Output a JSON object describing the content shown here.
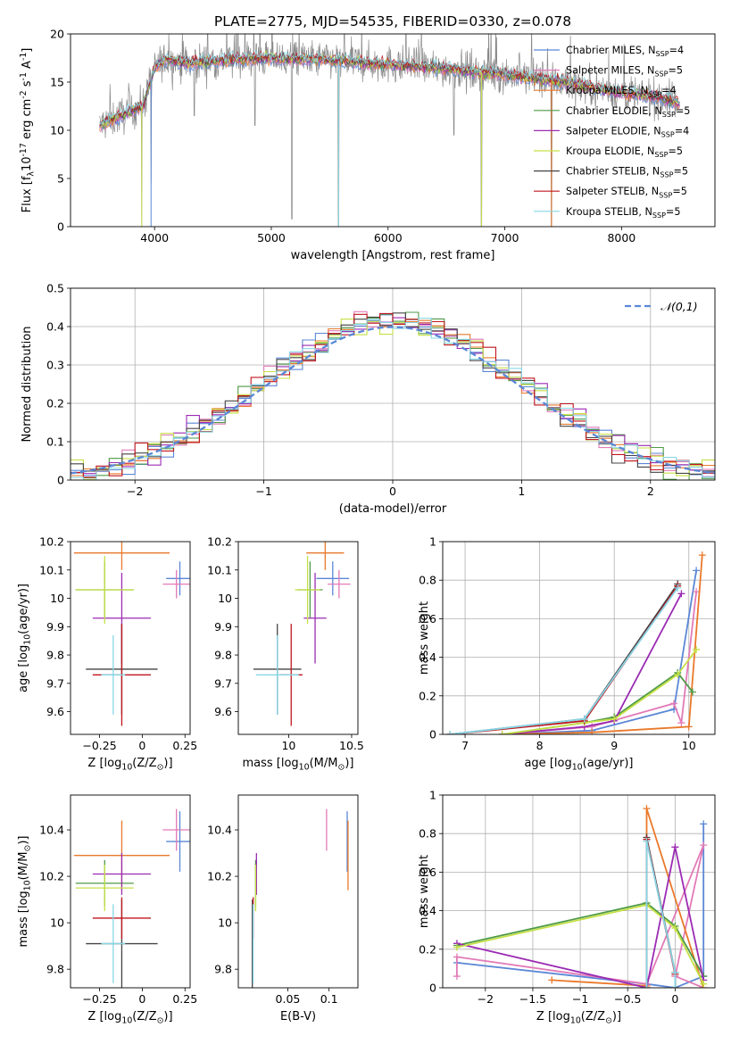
{
  "title": "PLATE=2775, MJD=54535, FIBERID=0330, z=0.078",
  "colors": {
    "chabrier_miles": "#5b87d6",
    "salpeter_miles": "#e27ab7",
    "kroupa_miles": "#e9792b",
    "chabrier_elodie": "#4f9a47",
    "salpeter_elodie": "#9b2bb4",
    "kroupa_elodie": "#c5e045",
    "chabrier_stelib": "#444444",
    "salpeter_stelib": "#c0161f",
    "kroupa_stelib": "#87d7e6",
    "data": "#888888",
    "gauss": "#5b87d6"
  },
  "legend_labels": [
    "Chabrier MILES, N$_{SSP}$=4",
    "Salpeter MILES, N$_{SSP}$=5",
    "Kroupa MILES, N$_{SSP}$=4",
    "Chabrier ELODIE, N$_{SSP}$=5",
    "Salpeter ELODIE, N$_{SSP}$=4",
    "Kroupa ELODIE, N$_{SSP}$=5",
    "Chabrier STELIB, N$_{SSP}$=5",
    "Salpeter STELIB, N$_{SSP}$=5",
    "Kroupa STELIB, N$_{SSP}$=5"
  ],
  "chart_data": [
    {
      "type": "line",
      "id": "spectrum",
      "title": "PLATE=2775, MJD=54535, FIBERID=0330, z=0.078",
      "xlabel": "wavelength [Angstrom, rest frame]",
      "ylabel": "Flux [f$_\\lambda$10$^{-17}$ erg cm$^{-2}$ s$^{-1}$ A$^{-1}$]",
      "xlim": [
        3280,
        8800
      ],
      "ylim": [
        0,
        20
      ],
      "xticks": [
        4000,
        5000,
        6000,
        7000,
        8000
      ],
      "yticks": [
        0,
        5,
        10,
        15,
        20
      ],
      "legend": "top-right",
      "grid": false,
      "series_keys": [
        "chabrier_miles",
        "salpeter_miles",
        "kroupa_miles",
        "chabrier_elodie",
        "salpeter_elodie",
        "kroupa_elodie",
        "chabrier_stelib",
        "salpeter_stelib",
        "kroupa_stelib"
      ],
      "model_envelope": {
        "x": [
          3530,
          3700,
          3900,
          4000,
          4100,
          4300,
          4500,
          4800,
          5000,
          5200,
          5500,
          5800,
          6000,
          6300,
          6500,
          6800,
          7000,
          7200,
          7400,
          7600,
          7800,
          8000,
          8200,
          8400,
          8500
        ],
        "y": [
          10.5,
          11.5,
          12.5,
          16.5,
          17.3,
          17.0,
          17.2,
          17.4,
          17.5,
          17.4,
          17.3,
          17.0,
          16.8,
          16.6,
          16.4,
          16.0,
          15.8,
          15.5,
          15.2,
          14.8,
          14.3,
          13.9,
          13.6,
          13.2,
          12.8
        ]
      },
      "data_dips": [
        [
          3890,
          0
        ],
        [
          3970,
          4.5
        ],
        [
          4340,
          11.5
        ],
        [
          4860,
          10.5
        ],
        [
          5175,
          0.8
        ],
        [
          5577,
          0
        ],
        [
          6563,
          9.5
        ],
        [
          6800,
          0
        ],
        [
          7400,
          0
        ]
      ]
    },
    {
      "type": "histogram",
      "id": "residuals",
      "xlabel": "(data-model)/error",
      "ylabel": "Normed distribution",
      "xlim": [
        -2.5,
        2.5
      ],
      "ylim": [
        0,
        0.5
      ],
      "xticks": [
        -2,
        -1,
        0,
        1,
        2
      ],
      "yticks": [
        0.0,
        0.1,
        0.2,
        0.3,
        0.4,
        0.5
      ],
      "legend_label": "$\\mathcal{N}(0,1)$",
      "legend": "top-right",
      "grid": true,
      "bin_width": 0.1
    },
    {
      "type": "scatter",
      "id": "age_vs_z",
      "xlabel": "Z [log$_{10}$(Z/Z$_\\odot$)]",
      "ylabel": "age  [log$_{10}$(age/yr)]",
      "xlim": [
        -0.42,
        0.28
      ],
      "ylim": [
        9.52,
        10.2
      ],
      "xticks": [
        -0.25,
        0.0,
        0.25
      ],
      "yticks": [
        9.6,
        9.7,
        9.8,
        9.9,
        10.0,
        10.1,
        10.2
      ],
      "points": [
        {
          "key": "chabrier_miles",
          "x": 0.22,
          "xerr": 0.08,
          "y": 10.07,
          "yerr": 0.06
        },
        {
          "key": "salpeter_miles",
          "x": 0.2,
          "xerr": 0.08,
          "y": 10.05,
          "yerr": 0.05
        },
        {
          "key": "kroupa_miles",
          "x": -0.12,
          "xerr": 0.28,
          "y": 10.16,
          "yerr": 0.06
        },
        {
          "key": "chabrier_elodie",
          "x": -0.22,
          "xerr": 0.17,
          "y": 10.03,
          "yerr": 0.1
        },
        {
          "key": "salpeter_elodie",
          "x": -0.12,
          "xerr": 0.17,
          "y": 9.93,
          "yerr": 0.16
        },
        {
          "key": "kroupa_elodie",
          "x": -0.22,
          "xerr": 0.17,
          "y": 10.03,
          "yerr": 0.12
        },
        {
          "key": "chabrier_stelib",
          "x": -0.12,
          "xerr": 0.21,
          "y": 9.75,
          "yerr": 0.16
        },
        {
          "key": "salpeter_stelib",
          "x": -0.12,
          "xerr": 0.17,
          "y": 9.73,
          "yerr": 0.18
        },
        {
          "key": "kroupa_stelib",
          "x": -0.17,
          "xerr": 0.07,
          "y": 9.73,
          "yerr": 0.14
        }
      ]
    },
    {
      "type": "scatter",
      "id": "age_vs_mass",
      "xlabel": "mass [log$_{10}$(M/M$_\\odot$)]",
      "ylabel": "",
      "xlim": [
        9.6,
        10.55
      ],
      "ylim": [
        9.52,
        10.2
      ],
      "xticks": [
        10.0,
        10.5
      ],
      "yticks": [
        9.6,
        9.7,
        9.8,
        9.9,
        10.0,
        10.1,
        10.2
      ],
      "points": [
        {
          "key": "chabrier_miles",
          "x": 10.35,
          "xerr": 0.13,
          "y": 10.07,
          "yerr": 0.06
        },
        {
          "key": "salpeter_miles",
          "x": 10.4,
          "xerr": 0.09,
          "y": 10.05,
          "yerr": 0.05
        },
        {
          "key": "kroupa_miles",
          "x": 10.29,
          "xerr": 0.15,
          "y": 10.16,
          "yerr": 0.06
        },
        {
          "key": "chabrier_elodie",
          "x": 10.17,
          "xerr": 0.1,
          "y": 10.03,
          "yerr": 0.1
        },
        {
          "key": "salpeter_elodie",
          "x": 10.21,
          "xerr": 0.09,
          "y": 9.93,
          "yerr": 0.16
        },
        {
          "key": "kroupa_elodie",
          "x": 10.15,
          "xerr": 0.1,
          "y": 10.03,
          "yerr": 0.12
        },
        {
          "key": "chabrier_stelib",
          "x": 9.91,
          "xerr": 0.19,
          "y": 9.75,
          "yerr": 0.16
        },
        {
          "key": "salpeter_stelib",
          "x": 10.02,
          "xerr": 0.09,
          "y": 9.73,
          "yerr": 0.18
        },
        {
          "key": "kroupa_stelib",
          "x": 9.91,
          "xerr": 0.17,
          "y": 9.73,
          "yerr": 0.14
        }
      ]
    },
    {
      "type": "line",
      "id": "weight_vs_age",
      "xlabel": "age  [log$_{10}$(age/yr)]",
      "ylabel": "mass weight",
      "xlim": [
        6.7,
        10.35
      ],
      "ylim": [
        0,
        1.0
      ],
      "xticks": [
        7,
        8,
        9,
        10
      ],
      "yticks": [
        0.0,
        0.2,
        0.4,
        0.6,
        0.8,
        1.0
      ],
      "grid": true,
      "series": [
        {
          "key": "chabrier_miles",
          "x": [
            7.5,
            8.7,
            9.8,
            10.1
          ],
          "y": [
            0.0,
            0.02,
            0.13,
            0.85
          ]
        },
        {
          "key": "salpeter_miles",
          "x": [
            7.5,
            8.7,
            9.8,
            9.9,
            10.1
          ],
          "y": [
            0.0,
            0.04,
            0.16,
            0.06,
            0.74
          ]
        },
        {
          "key": "kroupa_miles",
          "x": [
            7.5,
            8.7,
            10.0,
            10.18
          ],
          "y": [
            0.0,
            0.01,
            0.04,
            0.93
          ]
        },
        {
          "key": "chabrier_elodie",
          "x": [
            7.5,
            8.6,
            9.0,
            9.85,
            10.05
          ],
          "y": [
            0.0,
            0.06,
            0.09,
            0.32,
            0.22
          ]
        },
        {
          "key": "salpeter_elodie",
          "x": [
            7.5,
            8.6,
            9.0,
            9.9
          ],
          "y": [
            0.0,
            0.04,
            0.07,
            0.73
          ]
        },
        {
          "key": "kroupa_elodie",
          "x": [
            7.5,
            8.6,
            9.0,
            9.85,
            10.1
          ],
          "y": [
            0.0,
            0.06,
            0.08,
            0.31,
            0.44
          ]
        },
        {
          "key": "chabrier_stelib",
          "x": [
            6.8,
            8.6,
            9.85
          ],
          "y": [
            0.0,
            0.08,
            0.78
          ]
        },
        {
          "key": "salpeter_stelib",
          "x": [
            6.8,
            8.6,
            9.85
          ],
          "y": [
            0.0,
            0.07,
            0.77
          ]
        },
        {
          "key": "kroupa_stelib",
          "x": [
            6.8,
            8.6,
            9.85
          ],
          "y": [
            0.0,
            0.08,
            0.76
          ]
        }
      ]
    },
    {
      "type": "scatter",
      "id": "mass_vs_z",
      "xlabel": "Z [log$_{10}$(Z/Z$_\\odot$)]",
      "ylabel": "mass [log$_{10}$(M/M$_\\odot$)]",
      "xlim": [
        -0.42,
        0.28
      ],
      "ylim": [
        9.72,
        10.55
      ],
      "xticks": [
        -0.25,
        0.0,
        0.25
      ],
      "yticks": [
        9.8,
        10.0,
        10.2,
        10.4
      ],
      "points": [
        {
          "key": "chabrier_miles",
          "x": 0.22,
          "xerr": 0.08,
          "y": 10.35,
          "yerr": 0.13
        },
        {
          "key": "salpeter_miles",
          "x": 0.2,
          "xerr": 0.08,
          "y": 10.4,
          "yerr": 0.09
        },
        {
          "key": "kroupa_miles",
          "x": -0.12,
          "xerr": 0.28,
          "y": 10.29,
          "yerr": 0.15
        },
        {
          "key": "chabrier_elodie",
          "x": -0.22,
          "xerr": 0.17,
          "y": 10.17,
          "yerr": 0.1
        },
        {
          "key": "salpeter_elodie",
          "x": -0.12,
          "xerr": 0.17,
          "y": 10.21,
          "yerr": 0.09
        },
        {
          "key": "kroupa_elodie",
          "x": -0.22,
          "xerr": 0.17,
          "y": 10.15,
          "yerr": 0.1
        },
        {
          "key": "chabrier_stelib",
          "x": -0.12,
          "xerr": 0.21,
          "y": 9.91,
          "yerr": 0.19
        },
        {
          "key": "salpeter_stelib",
          "x": -0.12,
          "xerr": 0.17,
          "y": 10.02,
          "yerr": 0.09
        },
        {
          "key": "kroupa_stelib",
          "x": -0.17,
          "xerr": 0.07,
          "y": 9.91,
          "yerr": 0.17
        }
      ]
    },
    {
      "type": "scatter",
      "id": "mass_vs_ebv",
      "xlabel": "E(B-V)",
      "ylabel": "",
      "xlim": [
        -0.01,
        0.135
      ],
      "ylim": [
        9.72,
        10.55
      ],
      "xticks": [
        0.05,
        0.1
      ],
      "yticks": [
        9.8,
        10.0,
        10.2,
        10.4
      ],
      "points": [
        {
          "key": "chabrier_miles",
          "x": 0.122,
          "xerr": 0,
          "y": 10.35,
          "yerr": 0.13
        },
        {
          "key": "salpeter_miles",
          "x": 0.097,
          "xerr": 0,
          "y": 10.4,
          "yerr": 0.09
        },
        {
          "key": "kroupa_miles",
          "x": 0.123,
          "xerr": 0,
          "y": 10.29,
          "yerr": 0.15
        },
        {
          "key": "chabrier_elodie",
          "x": 0.011,
          "xerr": 0,
          "y": 10.17,
          "yerr": 0.1
        },
        {
          "key": "salpeter_elodie",
          "x": 0.012,
          "xerr": 0,
          "y": 10.21,
          "yerr": 0.09
        },
        {
          "key": "kroupa_elodie",
          "x": 0.011,
          "xerr": 0,
          "y": 10.15,
          "yerr": 0.1
        },
        {
          "key": "chabrier_stelib",
          "x": 0.007,
          "xerr": 0,
          "y": 9.91,
          "yerr": 0.19
        },
        {
          "key": "salpeter_stelib",
          "x": 0.008,
          "xerr": 0,
          "y": 10.02,
          "yerr": 0.09
        },
        {
          "key": "kroupa_stelib",
          "x": 0.008,
          "xerr": 0,
          "y": 9.91,
          "yerr": 0.17
        }
      ]
    },
    {
      "type": "line",
      "id": "weight_vs_z",
      "xlabel": "Z [log$_{10}$(Z/Z$_\\odot$)]",
      "ylabel": "mass weight",
      "xlim": [
        -2.45,
        0.42
      ],
      "ylim": [
        0,
        1.0
      ],
      "xticks": [
        -2.0,
        -1.5,
        -1.0,
        -0.5,
        0.0
      ],
      "yticks": [
        0.0,
        0.2,
        0.4,
        0.6,
        0.8,
        1.0
      ],
      "grid": true,
      "series": [
        {
          "key": "chabrier_miles",
          "x": [
            -2.3,
            -0.3,
            0.0,
            0.3,
            0.3
          ],
          "y": [
            0.13,
            0.02,
            0.0,
            0.06,
            0.85
          ]
        },
        {
          "key": "salpeter_miles",
          "x": [
            -2.3,
            -2.3,
            -0.3,
            0.3,
            0.0,
            0.3
          ],
          "y": [
            0.06,
            0.16,
            0.02,
            0.74,
            0.06,
            0.0
          ]
        },
        {
          "key": "kroupa_miles",
          "x": [
            -1.3,
            -0.3,
            -0.3,
            0.3
          ],
          "y": [
            0.04,
            0.01,
            0.93,
            0.0
          ]
        },
        {
          "key": "chabrier_elodie",
          "x": [
            -2.3,
            -0.3,
            0.0,
            0.3
          ],
          "y": [
            0.22,
            0.44,
            0.32,
            0.06
          ]
        },
        {
          "key": "salpeter_elodie",
          "x": [
            -2.3,
            -0.3,
            0.0,
            0.3
          ],
          "y": [
            0.23,
            0.0,
            0.73,
            0.04
          ]
        },
        {
          "key": "kroupa_elodie",
          "x": [
            -2.3,
            -0.3,
            0.0,
            0.3
          ],
          "y": [
            0.21,
            0.43,
            0.31,
            0.02
          ]
        },
        {
          "key": "chabrier_stelib",
          "x": [
            -0.3,
            -0.3,
            0.0,
            0.0
          ],
          "y": [
            0.0,
            0.78,
            0.08,
            0.0
          ]
        },
        {
          "key": "salpeter_stelib",
          "x": [
            -0.3,
            -0.3,
            0.0,
            0.0
          ],
          "y": [
            0.0,
            0.77,
            0.07,
            0.0
          ]
        },
        {
          "key": "kroupa_stelib",
          "x": [
            -0.3,
            -0.3,
            0.0,
            0.0
          ],
          "y": [
            0.0,
            0.76,
            0.08,
            0.0
          ]
        }
      ]
    }
  ]
}
